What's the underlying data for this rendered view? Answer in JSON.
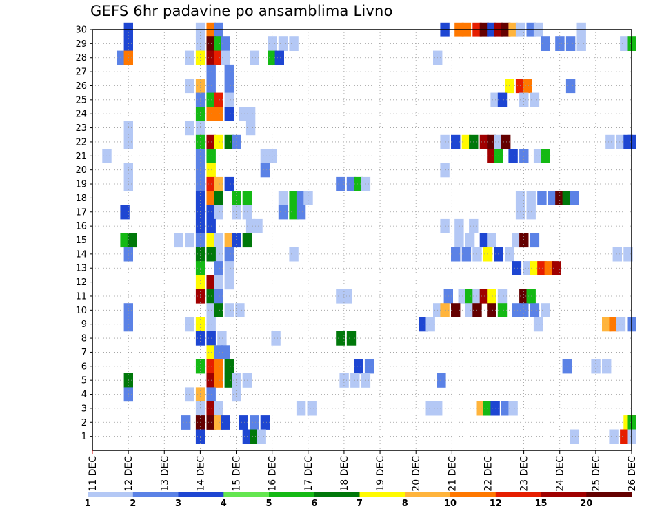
{
  "chart_data": {
    "type": "heatmap",
    "title": "GEFS 6hr padavine po ansamblima Livno",
    "xlabel": "",
    "ylabel": "",
    "x_ticks": [
      "11 DEC",
      "12 DEC",
      "13 DEC",
      "14 DEC",
      "15 DEC",
      "16 DEC",
      "17 DEC",
      "18 DEC",
      "19 DEC",
      "20 DEC",
      "21 DEC",
      "22 DEC",
      "23 DEC",
      "24 DEC",
      "25 DEC",
      "26 DEC"
    ],
    "y_ticks": [
      "1",
      "2",
      "3",
      "4",
      "5",
      "6",
      "7",
      "8",
      "9",
      "10",
      "11",
      "12",
      "13",
      "14",
      "15",
      "16",
      "17",
      "18",
      "19",
      "20",
      "21",
      "22",
      "23",
      "24",
      "25",
      "26",
      "27",
      "28",
      "29",
      "30"
    ],
    "ylim": [
      0,
      30
    ],
    "grid": true,
    "legend": {
      "placement": "bottom",
      "labels": [
        "1",
        "2",
        "3",
        "4",
        "5",
        "6",
        "7",
        "8",
        "10",
        "12",
        "15",
        "20"
      ],
      "colors": [
        "#b4c8f5",
        "#5b82e6",
        "#1e46d2",
        "#64e650",
        "#14b914",
        "#00780a",
        "#fffa00",
        "#ffb43c",
        "#ff7800",
        "#e61e00",
        "#a00000",
        "#640000"
      ]
    },
    "cells": [
      [
        30,
        12.0,
        3
      ],
      [
        30,
        14.0,
        1
      ],
      [
        30,
        14.3,
        10
      ],
      [
        30,
        14.5,
        2
      ],
      [
        30,
        20.8,
        3
      ],
      [
        30,
        21.2,
        10
      ],
      [
        30,
        21.4,
        10
      ],
      [
        30,
        21.7,
        12
      ],
      [
        30,
        21.9,
        20
      ],
      [
        30,
        22.1,
        3
      ],
      [
        30,
        22.3,
        15
      ],
      [
        30,
        22.5,
        20
      ],
      [
        30,
        22.7,
        8
      ],
      [
        30,
        22.9,
        1
      ],
      [
        30,
        23.2,
        2
      ],
      [
        30,
        23.4,
        1
      ],
      [
        30,
        24.6,
        1
      ],
      [
        29,
        12.0,
        3
      ],
      [
        29,
        14.0,
        1
      ],
      [
        29,
        14.3,
        20
      ],
      [
        29,
        14.5,
        5
      ],
      [
        29,
        14.7,
        2
      ],
      [
        29,
        16.0,
        1
      ],
      [
        29,
        16.3,
        1
      ],
      [
        29,
        16.6,
        1
      ],
      [
        29,
        23.6,
        2
      ],
      [
        29,
        24.0,
        2
      ],
      [
        29,
        24.3,
        2
      ],
      [
        29,
        24.6,
        1
      ],
      [
        29,
        25.8,
        1
      ],
      [
        29,
        26.0,
        5
      ],
      [
        28,
        11.8,
        2
      ],
      [
        28,
        12.0,
        10
      ],
      [
        28,
        13.7,
        1
      ],
      [
        28,
        14.0,
        7
      ],
      [
        28,
        14.3,
        15
      ],
      [
        28,
        14.5,
        12
      ],
      [
        28,
        14.7,
        1
      ],
      [
        28,
        15.5,
        1
      ],
      [
        28,
        16.0,
        5
      ],
      [
        28,
        16.2,
        3
      ],
      [
        28,
        20.6,
        1
      ],
      [
        27,
        14.3,
        2
      ],
      [
        27,
        14.8,
        2
      ],
      [
        26,
        13.7,
        1
      ],
      [
        26,
        14.0,
        8
      ],
      [
        26,
        14.3,
        2
      ],
      [
        26,
        14.8,
        2
      ],
      [
        26,
        22.6,
        7
      ],
      [
        26,
        22.9,
        12
      ],
      [
        26,
        23.1,
        10
      ],
      [
        26,
        24.3,
        2
      ],
      [
        25,
        14.0,
        2
      ],
      [
        25,
        14.3,
        5
      ],
      [
        25,
        14.5,
        12
      ],
      [
        25,
        14.8,
        1
      ],
      [
        25,
        22.2,
        1
      ],
      [
        25,
        22.4,
        3
      ],
      [
        25,
        23.0,
        1
      ],
      [
        25,
        23.3,
        1
      ],
      [
        24,
        14.0,
        5
      ],
      [
        24,
        14.3,
        10
      ],
      [
        24,
        14.5,
        10
      ],
      [
        24,
        14.8,
        3
      ],
      [
        24,
        15.2,
        1
      ],
      [
        24,
        15.4,
        1
      ],
      [
        23,
        12.0,
        1
      ],
      [
        23,
        13.7,
        1
      ],
      [
        23,
        14.0,
        1
      ],
      [
        23,
        15.4,
        1
      ],
      [
        22,
        12.0,
        1
      ],
      [
        22,
        14.0,
        5
      ],
      [
        22,
        14.3,
        15
      ],
      [
        22,
        14.5,
        7
      ],
      [
        22,
        14.8,
        6
      ],
      [
        22,
        15.0,
        2
      ],
      [
        22,
        20.8,
        1
      ],
      [
        22,
        21.1,
        3
      ],
      [
        22,
        21.4,
        7
      ],
      [
        22,
        21.6,
        6
      ],
      [
        22,
        21.9,
        15
      ],
      [
        22,
        22.1,
        20
      ],
      [
        22,
        22.3,
        1
      ],
      [
        22,
        22.5,
        20
      ],
      [
        22,
        25.4,
        1
      ],
      [
        22,
        25.7,
        1
      ],
      [
        22,
        25.9,
        3
      ],
      [
        22,
        26.0,
        3
      ],
      [
        21,
        11.4,
        1
      ],
      [
        21,
        14.0,
        2
      ],
      [
        21,
        14.3,
        5
      ],
      [
        21,
        15.8,
        1
      ],
      [
        21,
        16.0,
        1
      ],
      [
        21,
        22.1,
        15
      ],
      [
        21,
        22.3,
        5
      ],
      [
        21,
        22.7,
        3
      ],
      [
        21,
        23.0,
        2
      ],
      [
        21,
        23.4,
        1
      ],
      [
        21,
        23.6,
        5
      ],
      [
        20,
        12.0,
        1
      ],
      [
        20,
        14.0,
        2
      ],
      [
        20,
        14.3,
        7
      ],
      [
        20,
        15.8,
        2
      ],
      [
        20,
        20.8,
        1
      ],
      [
        19,
        12.0,
        1
      ],
      [
        19,
        14.0,
        2
      ],
      [
        19,
        14.3,
        12
      ],
      [
        19,
        14.5,
        8
      ],
      [
        19,
        14.8,
        3
      ],
      [
        19,
        17.9,
        2
      ],
      [
        19,
        18.2,
        2
      ],
      [
        19,
        18.4,
        5
      ],
      [
        19,
        18.6,
        1
      ],
      [
        18,
        14.0,
        3
      ],
      [
        18,
        14.3,
        10
      ],
      [
        18,
        14.5,
        6
      ],
      [
        18,
        15.0,
        5
      ],
      [
        18,
        15.3,
        5
      ],
      [
        18,
        16.3,
        1
      ],
      [
        18,
        16.6,
        5
      ],
      [
        18,
        16.8,
        2
      ],
      [
        18,
        17.0,
        1
      ],
      [
        18,
        22.9,
        1
      ],
      [
        18,
        23.2,
        1
      ],
      [
        18,
        23.5,
        2
      ],
      [
        18,
        23.8,
        2
      ],
      [
        18,
        24.0,
        20
      ],
      [
        18,
        24.2,
        6
      ],
      [
        18,
        24.4,
        2
      ],
      [
        17,
        11.9,
        3
      ],
      [
        17,
        14.0,
        3
      ],
      [
        17,
        14.3,
        3
      ],
      [
        17,
        14.5,
        1
      ],
      [
        17,
        15.0,
        1
      ],
      [
        17,
        15.3,
        1
      ],
      [
        17,
        16.3,
        2
      ],
      [
        17,
        16.6,
        5
      ],
      [
        17,
        16.8,
        2
      ],
      [
        17,
        22.9,
        1
      ],
      [
        17,
        23.2,
        1
      ],
      [
        16,
        14.0,
        3
      ],
      [
        16,
        14.3,
        3
      ],
      [
        16,
        15.4,
        1
      ],
      [
        16,
        15.6,
        1
      ],
      [
        16,
        20.8,
        1
      ],
      [
        16,
        21.2,
        1
      ],
      [
        16,
        21.6,
        1
      ],
      [
        15,
        11.9,
        5
      ],
      [
        15,
        12.1,
        6
      ],
      [
        15,
        13.4,
        1
      ],
      [
        15,
        13.7,
        1
      ],
      [
        15,
        14.0,
        2
      ],
      [
        15,
        14.3,
        7
      ],
      [
        15,
        14.5,
        1
      ],
      [
        15,
        14.8,
        8
      ],
      [
        15,
        15.0,
        3
      ],
      [
        15,
        15.3,
        6
      ],
      [
        15,
        21.2,
        1
      ],
      [
        15,
        21.5,
        1
      ],
      [
        15,
        21.9,
        3
      ],
      [
        15,
        22.1,
        1
      ],
      [
        15,
        22.8,
        1
      ],
      [
        15,
        23.0,
        20
      ],
      [
        15,
        23.3,
        2
      ],
      [
        14,
        12.0,
        2
      ],
      [
        14,
        14.0,
        6
      ],
      [
        14,
        14.3,
        8
      ],
      [
        14,
        14.5,
        1
      ],
      [
        14,
        14.8,
        2
      ],
      [
        14,
        16.6,
        1
      ],
      [
        14,
        21.1,
        2
      ],
      [
        14,
        21.4,
        2
      ],
      [
        14,
        21.7,
        1
      ],
      [
        14,
        22.0,
        7
      ],
      [
        14,
        22.3,
        3
      ],
      [
        14,
        22.6,
        1
      ],
      [
        14,
        25.6,
        1
      ],
      [
        14,
        25.9,
        1
      ],
      [
        13,
        14.0,
        5
      ],
      [
        14,
        14.3,
        6
      ],
      [
        13,
        14.5,
        2
      ],
      [
        13,
        14.8,
        1
      ],
      [
        13,
        22.8,
        3
      ],
      [
        13,
        23.1,
        1
      ],
      [
        13,
        23.3,
        7
      ],
      [
        13,
        23.5,
        12
      ],
      [
        13,
        23.7,
        10
      ],
      [
        13,
        23.9,
        15
      ],
      [
        12,
        14.0,
        7
      ],
      [
        12,
        14.3,
        15
      ],
      [
        12,
        14.5,
        1
      ],
      [
        12,
        14.8,
        1
      ],
      [
        11,
        14.0,
        15
      ],
      [
        11,
        14.3,
        6
      ],
      [
        11,
        14.5,
        2
      ],
      [
        11,
        17.9,
        1
      ],
      [
        11,
        18.1,
        1
      ],
      [
        11,
        20.9,
        2
      ],
      [
        11,
        21.3,
        1
      ],
      [
        11,
        21.5,
        5
      ],
      [
        11,
        21.7,
        1
      ],
      [
        11,
        21.9,
        15
      ],
      [
        11,
        22.1,
        7
      ],
      [
        11,
        22.4,
        1
      ],
      [
        11,
        23.0,
        20
      ],
      [
        11,
        23.2,
        5
      ],
      [
        10,
        12.0,
        2
      ],
      [
        10,
        14.3,
        1
      ],
      [
        10,
        14.5,
        6
      ],
      [
        10,
        14.8,
        1
      ],
      [
        10,
        15.1,
        1
      ],
      [
        10,
        20.6,
        1
      ],
      [
        10,
        20.8,
        8
      ],
      [
        10,
        21.1,
        20
      ],
      [
        10,
        21.5,
        1
      ],
      [
        10,
        21.7,
        20
      ],
      [
        10,
        22.1,
        20
      ],
      [
        10,
        22.4,
        5
      ],
      [
        10,
        22.8,
        2
      ],
      [
        10,
        23.0,
        2
      ],
      [
        10,
        23.3,
        2
      ],
      [
        10,
        23.6,
        1
      ],
      [
        9,
        12.0,
        2
      ],
      [
        9,
        13.7,
        1
      ],
      [
        9,
        14.0,
        7
      ],
      [
        9,
        14.3,
        1
      ],
      [
        9,
        20.2,
        3
      ],
      [
        9,
        20.4,
        1
      ],
      [
        9,
        23.4,
        1
      ],
      [
        9,
        25.3,
        8
      ],
      [
        9,
        25.5,
        10
      ],
      [
        9,
        25.7,
        1
      ],
      [
        9,
        26.0,
        2
      ],
      [
        8,
        14.0,
        3
      ],
      [
        8,
        14.3,
        3
      ],
      [
        8,
        14.6,
        1
      ],
      [
        8,
        16.1,
        1
      ],
      [
        8,
        17.9,
        6
      ],
      [
        8,
        18.2,
        6
      ],
      [
        7,
        14.3,
        7
      ],
      [
        7,
        14.5,
        2
      ],
      [
        7,
        14.7,
        2
      ],
      [
        6,
        14.0,
        5
      ],
      [
        6,
        14.3,
        12
      ],
      [
        6,
        14.5,
        10
      ],
      [
        6,
        14.8,
        6
      ],
      [
        6,
        18.4,
        3
      ],
      [
        6,
        18.7,
        2
      ],
      [
        6,
        24.2,
        2
      ],
      [
        6,
        25.0,
        1
      ],
      [
        6,
        25.3,
        1
      ],
      [
        5,
        12.0,
        6
      ],
      [
        5,
        14.3,
        15
      ],
      [
        5,
        14.5,
        10
      ],
      [
        5,
        14.8,
        6
      ],
      [
        5,
        15.0,
        1
      ],
      [
        5,
        15.3,
        1
      ],
      [
        5,
        18.0,
        1
      ],
      [
        5,
        18.3,
        1
      ],
      [
        5,
        18.6,
        1
      ],
      [
        5,
        20.7,
        2
      ],
      [
        4,
        12.0,
        2
      ],
      [
        4,
        13.7,
        1
      ],
      [
        4,
        14.0,
        8
      ],
      [
        4,
        14.3,
        2
      ],
      [
        4,
        15.0,
        1
      ],
      [
        3,
        14.0,
        1
      ],
      [
        3,
        14.3,
        15
      ],
      [
        3,
        14.5,
        1
      ],
      [
        3,
        16.8,
        1
      ],
      [
        3,
        17.1,
        1
      ],
      [
        3,
        20.4,
        1
      ],
      [
        3,
        20.6,
        1
      ],
      [
        3,
        21.8,
        8
      ],
      [
        3,
        22.0,
        5
      ],
      [
        3,
        22.2,
        3
      ],
      [
        3,
        22.5,
        2
      ],
      [
        3,
        22.7,
        1
      ],
      [
        2,
        13.6,
        2
      ],
      [
        2,
        14.0,
        20
      ],
      [
        2,
        14.3,
        20
      ],
      [
        2,
        14.5,
        8
      ],
      [
        2,
        14.7,
        3
      ],
      [
        2,
        15.2,
        3
      ],
      [
        2,
        15.5,
        2
      ],
      [
        2,
        15.8,
        3
      ],
      [
        2,
        25.9,
        7
      ],
      [
        2,
        26.0,
        15
      ],
      [
        2,
        26.0,
        5
      ],
      [
        1,
        14.0,
        3
      ],
      [
        1,
        15.3,
        3
      ],
      [
        1,
        15.5,
        6
      ],
      [
        1,
        15.7,
        1
      ],
      [
        1,
        24.4,
        1
      ],
      [
        1,
        25.5,
        1
      ],
      [
        1,
        25.8,
        12
      ],
      [
        1,
        26.0,
        1
      ]
    ]
  }
}
